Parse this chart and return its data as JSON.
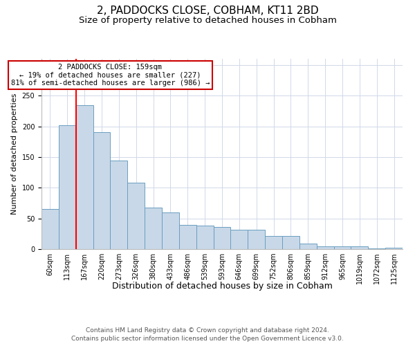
{
  "title1": "2, PADDOCKS CLOSE, COBHAM, KT11 2BD",
  "title2": "Size of property relative to detached houses in Cobham",
  "xlabel": "Distribution of detached houses by size in Cobham",
  "ylabel": "Number of detached properties",
  "categories": [
    "60sqm",
    "113sqm",
    "167sqm",
    "220sqm",
    "273sqm",
    "326sqm",
    "380sqm",
    "433sqm",
    "486sqm",
    "539sqm",
    "593sqm",
    "646sqm",
    "699sqm",
    "752sqm",
    "806sqm",
    "859sqm",
    "912sqm",
    "965sqm",
    "1019sqm",
    "1072sqm",
    "1125sqm"
  ],
  "values": [
    65,
    202,
    234,
    190,
    144,
    108,
    68,
    60,
    40,
    38,
    36,
    32,
    32,
    21,
    21,
    9,
    5,
    5,
    5,
    1,
    2
  ],
  "bar_color": "#c8d8e8",
  "bar_edge_color": "#6a9ec0",
  "annotation_line1": "2 PADDOCKS CLOSE: 159sqm",
  "annotation_line2": "← 19% of detached houses are smaller (227)",
  "annotation_line3": "81% of semi-detached houses are larger (986) →",
  "annotation_box_edge_color": "#cc0000",
  "red_line_x": 1.5,
  "grid_color": "#d0d8e8",
  "background_color": "#ffffff",
  "footer1": "Contains HM Land Registry data © Crown copyright and database right 2024.",
  "footer2": "Contains public sector information licensed under the Open Government Licence v3.0.",
  "ylim_max": 310,
  "title1_fontsize": 11,
  "title2_fontsize": 9.5,
  "xlabel_fontsize": 9,
  "ylabel_fontsize": 8,
  "tick_fontsize": 7,
  "annotation_fontsize": 7.5,
  "footer_fontsize": 6.5
}
